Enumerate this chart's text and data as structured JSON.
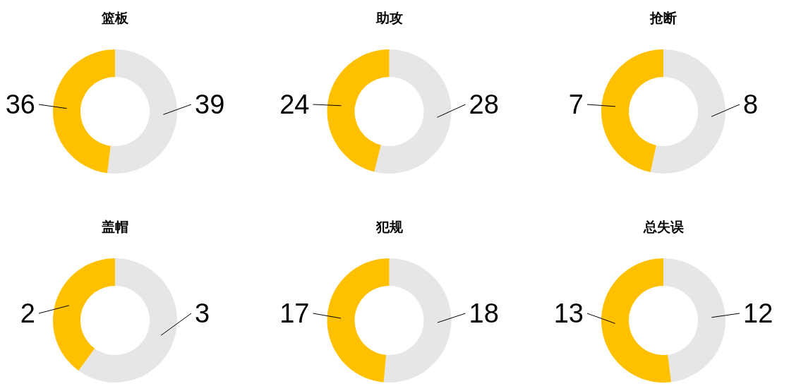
{
  "chart_data": [
    {
      "type": "donut",
      "title": "篮板",
      "categories": [
        null,
        null
      ],
      "values": [
        39,
        36
      ],
      "colors": [
        "#e7e6e6",
        "#ffc000"
      ],
      "data_labels": true
    },
    {
      "type": "donut",
      "title": "助攻",
      "categories": [
        null,
        null
      ],
      "values": [
        28,
        24
      ],
      "colors": [
        "#e7e6e6",
        "#ffc000"
      ],
      "data_labels": true
    },
    {
      "type": "donut",
      "title": "抢断",
      "categories": [
        null,
        null
      ],
      "values": [
        8,
        7
      ],
      "colors": [
        "#e7e6e6",
        "#ffc000"
      ],
      "data_labels": true
    },
    {
      "type": "donut",
      "title": "盖帽",
      "categories": [
        null,
        null
      ],
      "values": [
        3,
        2
      ],
      "colors": [
        "#e7e6e6",
        "#ffc000"
      ],
      "data_labels": true
    },
    {
      "type": "donut",
      "title": "犯规",
      "categories": [
        null,
        null
      ],
      "values": [
        18,
        17
      ],
      "colors": [
        "#e7e6e6",
        "#ffc000"
      ],
      "data_labels": true
    },
    {
      "type": "donut",
      "title": "总失误",
      "categories": [
        null,
        null
      ],
      "values": [
        12,
        13
      ],
      "colors": [
        "#e7e6e6",
        "#ffc000"
      ],
      "data_labels": true
    }
  ]
}
